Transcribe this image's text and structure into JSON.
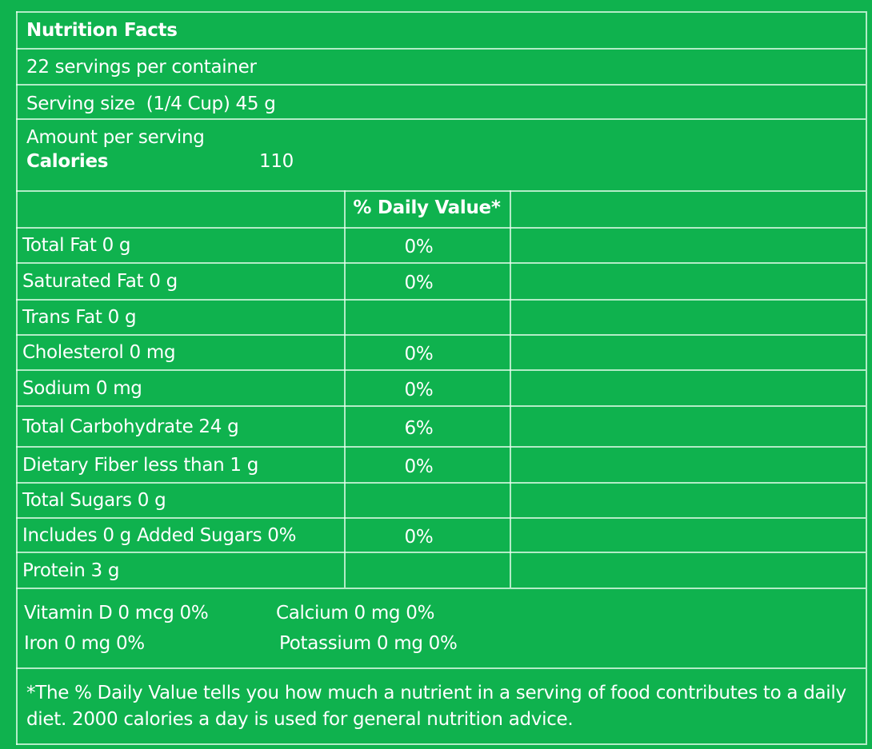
{
  "header": {
    "title": "Nutrition Facts",
    "servings": "22 servings per container",
    "serving_size": "Serving size  (1/4 Cup) 45 g",
    "amount_per_serving": "Amount per serving",
    "calories_label": "Calories",
    "calories": "110"
  },
  "table": {
    "header": "% Daily Value*",
    "rows": [
      {
        "nutrient": "Total Fat 0 g",
        "daily_value": "0%"
      },
      {
        "nutrient": "Saturated Fat 0 g",
        "daily_value": "0%"
      },
      {
        "nutrient": "Trans Fat 0 g"
      },
      {
        "nutrient": "Cholesterol 0 mg",
        "daily_value": "0%"
      },
      {
        "nutrient": "Sodium 0 mg",
        "daily_value": "0%"
      },
      {
        "nutrient": "Total Carbohydrate 24 g",
        "daily_value": "6%"
      },
      {
        "nutrient": "Dietary Fiber less than 1 g",
        "daily_value": "0%"
      },
      {
        "nutrient": "Total Sugars 0 g"
      },
      {
        "nutrient": "Includes 0 g Added Sugars 0%",
        "daily_value": "0%"
      },
      {
        "nutrient": "Protein 3 g"
      }
    ]
  },
  "vitamins": [
    "Vitamin D 0 mcg 0%",
    "Calcium 0 mg 0%",
    "Iron 0 mg 0%",
    "Potassium 0 mg 0%"
  ],
  "footnote": "*The % Daily Value tells you how much a nutrient in a serving of food contributes to a daily diet. 2000 calories a day is used for general nutrition advice."
}
